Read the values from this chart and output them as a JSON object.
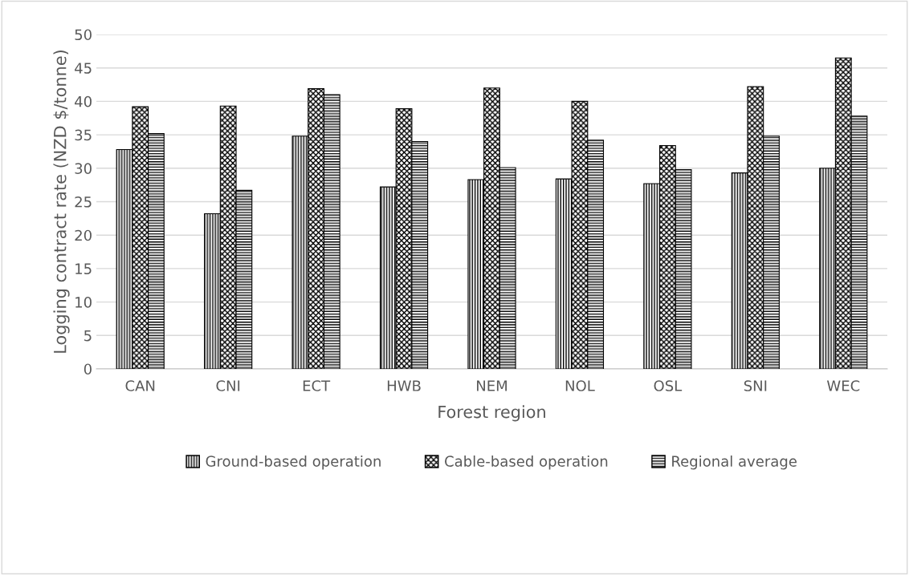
{
  "chart_data": {
    "type": "bar",
    "xlabel": "Forest region",
    "ylabel": "Logging contract rate (NZD $/tonne)",
    "categories": [
      "CAN",
      "CNI",
      "ECT",
      "HWB",
      "NEM",
      "NOL",
      "OSL",
      "SNI",
      "WEC"
    ],
    "series": [
      {
        "name": "Ground-based operation",
        "color": "#000000",
        "values": [
          32.8,
          23.2,
          34.8,
          27.2,
          28.3,
          28.4,
          27.7,
          29.3,
          30.0
        ]
      },
      {
        "name": "Cable-based operation",
        "color": "#000000",
        "values": [
          39.2,
          39.3,
          41.9,
          38.9,
          42.0,
          40.0,
          33.4,
          42.2,
          46.5
        ]
      },
      {
        "name": "Regional average",
        "color": "#000000",
        "values": [
          35.2,
          26.7,
          41.0,
          34.0,
          30.1,
          34.2,
          29.8,
          34.8,
          37.8
        ]
      }
    ],
    "ylim": [
      0,
      50
    ],
    "yticks": [
      0,
      5,
      10,
      15,
      20,
      25,
      30,
      35,
      40,
      45,
      50
    ],
    "grid": "y",
    "legend": "bottom"
  }
}
